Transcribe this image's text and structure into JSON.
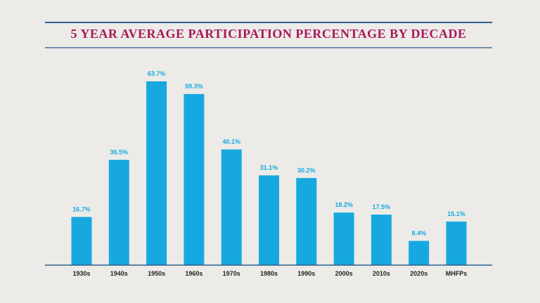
{
  "chart_data": {
    "type": "bar",
    "title": "5 YEAR AVERAGE PARTICIPATION PERCENTAGE BY DECADE",
    "categories": [
      "1930s",
      "1940s",
      "1950s",
      "1960s",
      "1970s",
      "1980s",
      "1990s",
      "2000s",
      "2010s",
      "2020s",
      "MHFPs"
    ],
    "values": [
      16.7,
      36.5,
      63.7,
      59.3,
      40.1,
      31.1,
      30.2,
      18.2,
      17.5,
      8.4,
      15.1
    ],
    "data_labels": [
      "16.7%",
      "36.5%",
      "63.7%",
      "59.3%",
      "40.1%",
      "31.1%",
      "30.2%",
      "18.2%",
      "17.5%",
      "8.4%",
      "15.1%"
    ],
    "xlabel": "",
    "ylabel": "",
    "ylim": [
      0,
      70
    ],
    "grid": false,
    "colors": {
      "bar": "#17a8e0",
      "label": "#17a8e0",
      "title": "#a8185a",
      "rule": "#2f5f8f",
      "background": "#ecebe7"
    }
  }
}
